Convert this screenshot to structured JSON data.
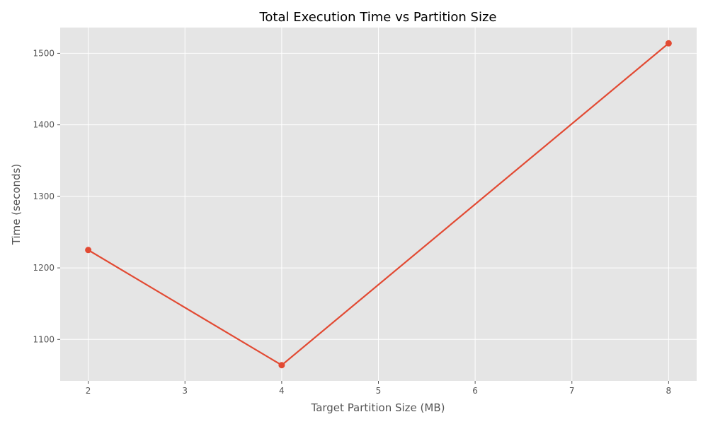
{
  "chart_data": {
    "type": "line",
    "title": "Total Execution Time vs Partition Size",
    "xlabel": "Target Partition Size (MB)",
    "ylabel": "Time (seconds)",
    "xlim": [
      1.71,
      8.29
    ],
    "ylim": [
      1042,
      1536
    ],
    "xticks": [
      2,
      3,
      4,
      5,
      6,
      7,
      8
    ],
    "yticks": [
      1100,
      1200,
      1300,
      1400,
      1500
    ],
    "grid": true,
    "series": [
      {
        "x": [
          2,
          4,
          8
        ],
        "values": [
          1225,
          1064,
          1514
        ]
      }
    ],
    "colors": {
      "line": "#E24A33",
      "plot_background": "#E5E5E5",
      "grid": "#FFFFFF",
      "text": "#555555"
    }
  }
}
